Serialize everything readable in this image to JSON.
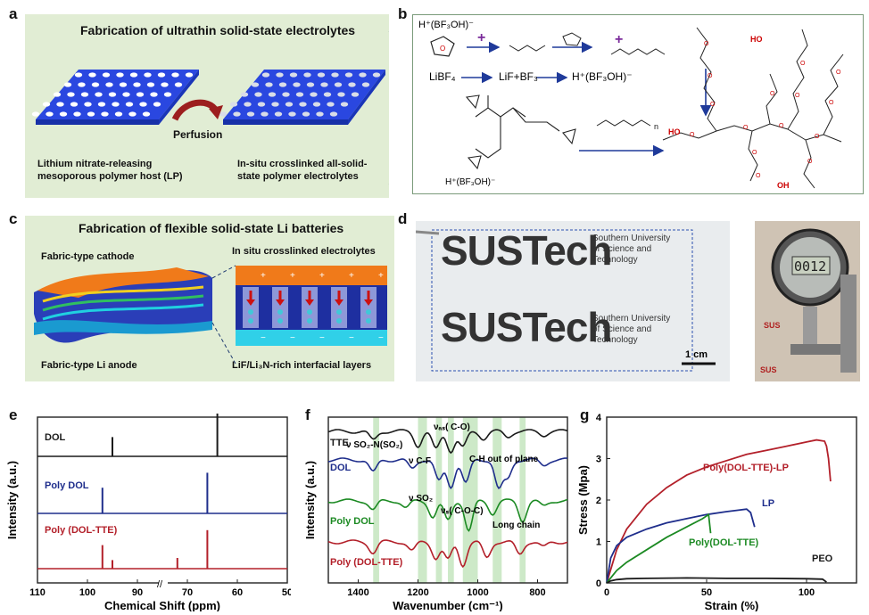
{
  "panel_labels": {
    "a": "a",
    "b": "b",
    "c": "c",
    "d": "d",
    "e": "e",
    "f": "f",
    "g": "g"
  },
  "panel_a": {
    "title": "Fabrication of ultrathin solid-state electrolytes",
    "arrow_label": "Perfusion",
    "left_caption_1": "Lithium nitrate-releasing",
    "left_caption_2": "mesoporous polymer host (LP)",
    "right_caption_1": "In-situ crosslinked  all-solid-",
    "right_caption_2": "state polymer electrolytes"
  },
  "panel_b": {
    "acid": "H⁺(BF₃OH)⁻",
    "salt": "LiBF₄",
    "decomp": "LiF+BF₃",
    "product": "H⁺(BF₃OH)⁻",
    "ho1": "HO",
    "ho2": "HO",
    "oh": "OH",
    "n": "n"
  },
  "panel_c": {
    "title": "Fabrication of flexible solid-state Li batteries",
    "cathode": "Fabric-type cathode",
    "anode": "Fabric-type Li anode",
    "electrolyte": "In situ crosslinked electrolytes",
    "interface": "LiF/Li₃N-rich interfacial layers"
  },
  "panel_d": {
    "logo": "SUSTech",
    "univ_1": "Southern University",
    "univ_2": "of Science and",
    "univ_3": "Technology",
    "scale": "1 cm",
    "gauge_reading": "0012"
  },
  "colors": {
    "black": "#1a1a1a",
    "blue": "#1f2e8c",
    "green": "#1c8a23",
    "red": "#b3202a",
    "panel_green": "#e1edd4",
    "sheet_blue": "#2244dd"
  },
  "chart_data": [
    {
      "type": "line",
      "id": "e",
      "title": "",
      "xlabel": "Chemical Shift (ppm)",
      "ylabel": "Intensity (a.u.)",
      "xticks": [
        "110",
        "100",
        "90",
        "70",
        "60",
        "50"
      ],
      "axis_break": true,
      "series": [
        {
          "name": "DOL",
          "peaks_ppm": [
            95,
            64
          ],
          "peak_heights": [
            0.45,
            1.0
          ]
        },
        {
          "name": "Poly DOL",
          "peaks_ppm": [
            97,
            66
          ],
          "peak_heights": [
            0.6,
            0.95
          ]
        },
        {
          "name": "Poly (DOL-TTE)",
          "peaks_ppm": [
            97,
            95,
            72,
            66
          ],
          "peak_heights": [
            0.55,
            0.2,
            0.25,
            0.9
          ]
        }
      ]
    },
    {
      "type": "line",
      "id": "f",
      "title": "",
      "xlabel": "Wavenumber (cm⁻¹)",
      "ylabel": "Intensity (a.u.)",
      "xticks": [
        "1400",
        "1200",
        "1000",
        "800"
      ],
      "xlim": [
        1500,
        700
      ],
      "series": [
        {
          "name": "TTE"
        },
        {
          "name": "DOL"
        },
        {
          "name": "Poly DOL"
        },
        {
          "name": "Poly (DOL-TTE)"
        }
      ],
      "annotations": [
        "νₐₛ( C-O)",
        "ν SO₂-N(SO₂)",
        "ν C-F",
        "C-H out of plane",
        "ν SO₂",
        "νₛ( C-O-C)",
        "Long chain"
      ],
      "highlight_bands_cm": [
        [
          1350,
          1330
        ],
        [
          1200,
          1170
        ],
        [
          1140,
          1120
        ],
        [
          1100,
          1080
        ],
        [
          1050,
          1000
        ],
        [
          950,
          920
        ],
        [
          860,
          840
        ]
      ]
    },
    {
      "type": "line",
      "id": "g",
      "title": "",
      "xlabel": "Strain (%)",
      "ylabel": "Stress (Mpa)",
      "xticks": [
        "0",
        "50",
        "100"
      ],
      "yticks": [
        "0",
        "1",
        "2",
        "3",
        "4"
      ],
      "xlim": [
        0,
        125
      ],
      "ylim": [
        0,
        4
      ],
      "series": [
        {
          "name": "Poly(DOL-TTE)-LP",
          "x": [
            0,
            5,
            10,
            20,
            30,
            40,
            50,
            60,
            70,
            80,
            90,
            100,
            105,
            109,
            110,
            111,
            112
          ],
          "y": [
            0,
            0.8,
            1.3,
            1.9,
            2.3,
            2.6,
            2.8,
            2.95,
            3.1,
            3.2,
            3.3,
            3.4,
            3.45,
            3.42,
            3.3,
            3.0,
            2.45
          ]
        },
        {
          "name": "LP",
          "x": [
            0,
            2,
            5,
            10,
            20,
            30,
            40,
            50,
            60,
            65,
            70,
            72,
            74
          ],
          "y": [
            0,
            0.6,
            0.9,
            1.1,
            1.3,
            1.45,
            1.55,
            1.65,
            1.72,
            1.75,
            1.78,
            1.7,
            1.35
          ]
        },
        {
          "name": "Poly(DOL-TTE)",
          "x": [
            0,
            5,
            10,
            20,
            30,
            40,
            48,
            51,
            52
          ],
          "y": [
            0,
            0.3,
            0.5,
            0.8,
            1.1,
            1.35,
            1.55,
            1.65,
            1.2
          ]
        },
        {
          "name": "PEO",
          "x": [
            0,
            2,
            5,
            10,
            20,
            40,
            60,
            80,
            100,
            108,
            110
          ],
          "y": [
            0,
            0.05,
            0.08,
            0.1,
            0.11,
            0.12,
            0.11,
            0.11,
            0.1,
            0.09,
            0.02
          ]
        }
      ]
    }
  ]
}
